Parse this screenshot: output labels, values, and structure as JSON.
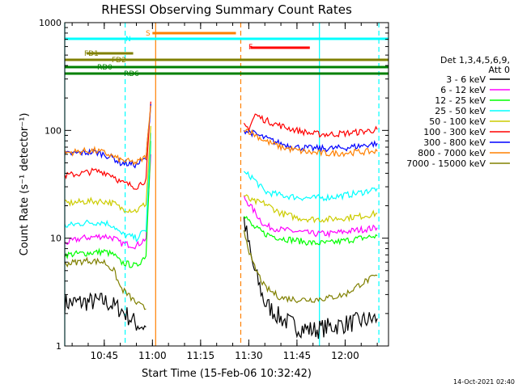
{
  "chart_data": {
    "type": "line",
    "title": "RHESSI Observing Summary Count Rates",
    "xlabel": "Start Time (15-Feb-06 10:32:42)",
    "ylabel": "Count Rate (s⁻¹ detector⁻¹)",
    "y_scale": "log",
    "x_range": [
      "10:32:42",
      "12:13:30"
    ],
    "ylim": [
      1,
      1000
    ],
    "x_ticks": [
      "10:45",
      "11:00",
      "11:15",
      "11:30",
      "11:45",
      "12:00"
    ],
    "y_ticks": [
      "1",
      "10",
      "100",
      "1000"
    ],
    "legend": {
      "header_line1": "Det 1,3,4,5,6,9,",
      "header_line2": "Att 0",
      "placement": "right"
    },
    "series": [
      {
        "name": "3 - 6 keV",
        "color": "#000000",
        "points": [
          [
            "10:32:42",
            2.5
          ],
          [
            "10:45:00",
            2.6
          ],
          [
            "10:50:00",
            2.2
          ],
          [
            "10:55:00",
            1.6
          ],
          [
            "10:58:00",
            1.5
          ],
          [
            "11:28:30",
            15
          ],
          [
            "11:31:00",
            6
          ],
          [
            "11:35:00",
            2.5
          ],
          [
            "11:40:00",
            1.8
          ],
          [
            "11:45:00",
            1.5
          ],
          [
            "11:50:00",
            1.4
          ],
          [
            "11:55:00",
            1.5
          ],
          [
            "12:00:00",
            1.6
          ],
          [
            "12:05:00",
            1.7
          ],
          [
            "12:10:00",
            1.8
          ]
        ]
      },
      {
        "name": "6 - 12 keV",
        "color": "#ff00ff",
        "points": [
          [
            "10:32:42",
            9
          ],
          [
            "10:38:00",
            10
          ],
          [
            "10:45:00",
            10.5
          ],
          [
            "10:48:00",
            10
          ],
          [
            "10:50:00",
            9
          ],
          [
            "10:55:00",
            8.5
          ],
          [
            "10:58:00",
            10
          ],
          [
            "10:59:30",
            60
          ],
          [
            "11:28:30",
            24
          ],
          [
            "11:31:00",
            19
          ],
          [
            "11:35:00",
            13
          ],
          [
            "11:40:00",
            12
          ],
          [
            "11:45:00",
            11.5
          ],
          [
            "11:50:00",
            11
          ],
          [
            "11:55:00",
            11
          ],
          [
            "12:00:00",
            11.5
          ],
          [
            "12:05:00",
            12
          ],
          [
            "12:10:00",
            12.5
          ]
        ]
      },
      {
        "name": "12 - 25 keV",
        "color": "#00ff00",
        "points": [
          [
            "10:32:42",
            7
          ],
          [
            "10:45:00",
            7.5
          ],
          [
            "10:48:00",
            7
          ],
          [
            "10:50:00",
            6
          ],
          [
            "10:55:00",
            5.5
          ],
          [
            "10:58:00",
            7
          ],
          [
            "10:59:30",
            80
          ],
          [
            "11:28:30",
            17
          ],
          [
            "11:31:00",
            13
          ],
          [
            "11:35:00",
            11
          ],
          [
            "11:40:00",
            10
          ],
          [
            "11:45:00",
            9.5
          ],
          [
            "11:50:00",
            9
          ],
          [
            "11:55:00",
            9
          ],
          [
            "12:00:00",
            9.5
          ],
          [
            "12:05:00",
            10
          ],
          [
            "12:10:00",
            10.5
          ]
        ]
      },
      {
        "name": "25 - 50 keV",
        "color": "#00ffff",
        "points": [
          [
            "10:32:42",
            13
          ],
          [
            "10:40:00",
            14
          ],
          [
            "10:45:00",
            14
          ],
          [
            "10:48:00",
            13
          ],
          [
            "10:50:00",
            11
          ],
          [
            "10:55:00",
            10
          ],
          [
            "10:58:00",
            12
          ],
          [
            "10:59:30",
            95
          ],
          [
            "11:28:30",
            40
          ],
          [
            "11:31:00",
            37
          ],
          [
            "11:35:00",
            27
          ],
          [
            "11:40:00",
            25
          ],
          [
            "11:45:00",
            24
          ],
          [
            "11:50:00",
            23.5
          ],
          [
            "11:55:00",
            24
          ],
          [
            "12:00:00",
            25
          ],
          [
            "12:05:00",
            26.5
          ],
          [
            "12:10:00",
            29
          ]
        ]
      },
      {
        "name": "50 - 100 keV",
        "color": "#cccc00",
        "points": [
          [
            "10:32:42",
            21
          ],
          [
            "10:40:00",
            22
          ],
          [
            "10:45:00",
            22
          ],
          [
            "10:48:00",
            21
          ],
          [
            "10:50:00",
            19
          ],
          [
            "10:55:00",
            18
          ],
          [
            "10:58:00",
            21
          ],
          [
            "10:59:30",
            110
          ],
          [
            "11:28:30",
            25
          ],
          [
            "11:31:00",
            22
          ],
          [
            "11:35:00",
            21
          ],
          [
            "11:40:00",
            17
          ],
          [
            "11:45:00",
            15.5
          ],
          [
            "11:50:00",
            15
          ],
          [
            "11:55:00",
            15
          ],
          [
            "12:00:00",
            15.5
          ],
          [
            "12:05:00",
            16
          ],
          [
            "12:10:00",
            17
          ]
        ]
      },
      {
        "name": "100 - 300 keV",
        "color": "#ff0000",
        "points": [
          [
            "10:32:42",
            38
          ],
          [
            "10:38:00",
            40
          ],
          [
            "10:42:00",
            42
          ],
          [
            "10:45:00",
            41
          ],
          [
            "10:48:00",
            38
          ],
          [
            "10:50:00",
            33
          ],
          [
            "10:55:00",
            30
          ],
          [
            "10:58:00",
            35
          ],
          [
            "10:59:30",
            185
          ],
          [
            "11:28:30",
            110
          ],
          [
            "11:30:00",
            105
          ],
          [
            "11:32:00",
            140
          ],
          [
            "11:35:00",
            125
          ],
          [
            "11:40:00",
            110
          ],
          [
            "11:45:00",
            100
          ],
          [
            "11:50:00",
            93
          ],
          [
            "11:55:00",
            92
          ],
          [
            "12:00:00",
            94
          ],
          [
            "12:05:00",
            97
          ],
          [
            "12:10:00",
            102
          ]
        ]
      },
      {
        "name": "300 - 800 keV",
        "color": "#0000ff",
        "points": [
          [
            "10:32:42",
            60
          ],
          [
            "10:38:00",
            62
          ],
          [
            "10:42:00",
            63
          ],
          [
            "10:45:00",
            60
          ],
          [
            "10:48:00",
            55
          ],
          [
            "10:50:00",
            50
          ],
          [
            "10:55:00",
            48
          ],
          [
            "10:58:00",
            55
          ],
          [
            "10:59:30",
            175
          ],
          [
            "11:28:30",
            100
          ],
          [
            "11:31:00",
            95
          ],
          [
            "11:35:00",
            85
          ],
          [
            "11:40:00",
            75
          ],
          [
            "11:45:00",
            70
          ],
          [
            "11:50:00",
            68
          ],
          [
            "11:55:00",
            68
          ],
          [
            "12:00:00",
            69
          ],
          [
            "12:05:00",
            72
          ],
          [
            "12:10:00",
            76
          ]
        ]
      },
      {
        "name": "800 - 7000 keV",
        "color": "#ff8000",
        "points": [
          [
            "10:32:42",
            62
          ],
          [
            "10:38:00",
            64
          ],
          [
            "10:42:00",
            65
          ],
          [
            "10:45:00",
            62
          ],
          [
            "10:48:00",
            57
          ],
          [
            "10:50:00",
            53
          ],
          [
            "10:55:00",
            50
          ],
          [
            "10:58:00",
            57
          ],
          [
            "10:59:30",
            170
          ],
          [
            "11:28:30",
            105
          ],
          [
            "11:31:00",
            95
          ],
          [
            "11:35:00",
            80
          ],
          [
            "11:40:00",
            70
          ],
          [
            "11:45:00",
            65
          ],
          [
            "11:50:00",
            62
          ],
          [
            "11:55:00",
            61
          ],
          [
            "12:00:00",
            62
          ],
          [
            "12:05:00",
            63
          ],
          [
            "12:10:00",
            64
          ]
        ]
      },
      {
        "name": "7000 - 15000 keV",
        "color": "#808000",
        "points": [
          [
            "10:32:42",
            5.8
          ],
          [
            "10:40:00",
            6.2
          ],
          [
            "10:45:00",
            6
          ],
          [
            "10:48:00",
            5
          ],
          [
            "10:50:00",
            3.5
          ],
          [
            "10:55:00",
            2.5
          ],
          [
            "10:58:00",
            2.2
          ],
          [
            "11:28:30",
            12
          ],
          [
            "11:31:00",
            6
          ],
          [
            "11:35:00",
            3.5
          ],
          [
            "11:40:00",
            2.8
          ],
          [
            "11:45:00",
            2.7
          ],
          [
            "11:50:00",
            2.7
          ],
          [
            "11:55:00",
            2.8
          ],
          [
            "12:00:00",
            3
          ],
          [
            "12:05:00",
            3.8
          ],
          [
            "12:10:00",
            4.5
          ]
        ]
      }
    ],
    "state_bars": [
      {
        "label": "FD1",
        "color": "#808000",
        "start": "10:39:30",
        "end": "10:54:00",
        "level": "fd1"
      },
      {
        "label": "FD2",
        "color": "#808000",
        "start": "10:32:42",
        "end": "12:13:30",
        "level": "fd2"
      },
      {
        "label": "RD0",
        "color": "#008000",
        "start": "10:32:42",
        "end": "12:13:30",
        "level": "rd0"
      },
      {
        "label": "RD6",
        "color": "#008000",
        "start": "10:32:42",
        "end": "12:13:30",
        "level": "rd6"
      },
      {
        "label": "N",
        "color": "#00ffff",
        "start": "10:32:42",
        "end": "12:13:30",
        "level": "n"
      },
      {
        "label": "S",
        "color": "#ff8000",
        "start": "11:00:00",
        "end": "11:26:00",
        "level": "s"
      },
      {
        "label": "F",
        "color": "#ff0000",
        "start": "11:30:30",
        "end": "11:49:00",
        "level": "f"
      }
    ],
    "vertical_markers": [
      {
        "time": "10:32:42",
        "color": "#00ffff",
        "style": "solid"
      },
      {
        "time": "10:51:30",
        "color": "#00ffff",
        "style": "dashed"
      },
      {
        "time": "11:01:00",
        "color": "#ff8000",
        "style": "solid"
      },
      {
        "time": "11:27:30",
        "color": "#ff8000",
        "style": "dashed"
      },
      {
        "time": "11:52:00",
        "color": "#00ffff",
        "style": "solid"
      },
      {
        "time": "12:10:30",
        "color": "#00ffff",
        "style": "dashed"
      }
    ]
  },
  "footer": {
    "date_stamp": "14-Oct-2021 02:40"
  }
}
